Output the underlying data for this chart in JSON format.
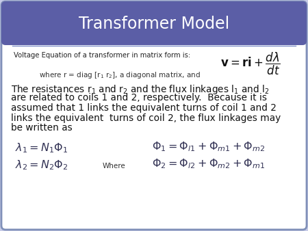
{
  "title": "Transformer Model",
  "title_color": "#ffffff",
  "header_bg_color": "#5b5ea6",
  "body_bg_color": "#f5f5ff",
  "border_color": "#7b9eb0",
  "outer_bg": "#c8cce8",
  "small_text": "Voltage Equation of a transformer in matrix form is:",
  "where_line": "where r = diag [r₁ r₂], a diagonal matrix, and",
  "body_line1": "The resistances r₁ and r₂ and the flux linkages l₁ and l₂",
  "body_line2": "are related to coils 1 and 2, respectively.  Because it is",
  "body_line3": "assumed that 1 links the equivalent turns of coil 1 and 2",
  "body_line4": "links the equivalent  turns of coil 2, the flux linkages may",
  "body_line5": "be written as",
  "eq1_left": "$\\lambda_1 = N_1\\Phi_1$",
  "eq2_left": "$\\lambda_2 = N_2\\Phi_2$",
  "eq1_right": "$\\Phi_1 = \\Phi_{l1} + \\Phi_{m1} + \\Phi_{m2}$",
  "eq2_right": "$\\Phi_2 = \\Phi_{l2} + \\Phi_{m2} + \\Phi_{m1}$",
  "formula": "$\\mathbf{v} = \\mathbf{ri} + \\dfrac{d\\lambda}{dt}$",
  "where_label": "Where"
}
